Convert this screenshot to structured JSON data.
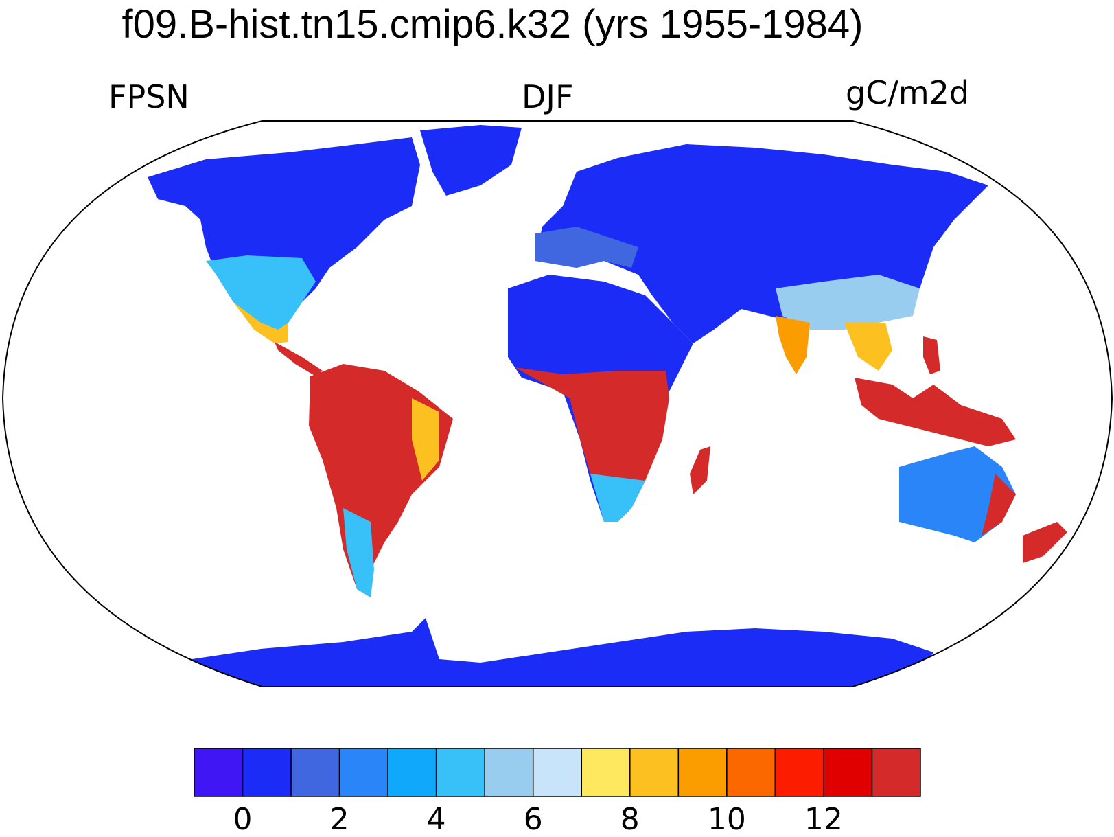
{
  "title": "f09.B-hist.tn15.cmip6.k32 (yrs 1955-1984)",
  "variable": "FPSN",
  "season": "DJF",
  "units": "gC/m2d",
  "colors": {
    "ocean": "#ffffff",
    "outline": "#000000",
    "land_low": "#1a2cf5"
  },
  "colorbar": {
    "colors": [
      "#4016f5",
      "#1a2cf5",
      "#4066e0",
      "#2a86f8",
      "#10a8fa",
      "#38c0f8",
      "#98cdf0",
      "#c8e4fa",
      "#fde860",
      "#fcc020",
      "#fb9c00",
      "#fb6800",
      "#fc1c00",
      "#e00000",
      "#d42a2a"
    ],
    "ticks": [
      "0",
      "2",
      "4",
      "6",
      "8",
      "10",
      "12"
    ]
  }
}
